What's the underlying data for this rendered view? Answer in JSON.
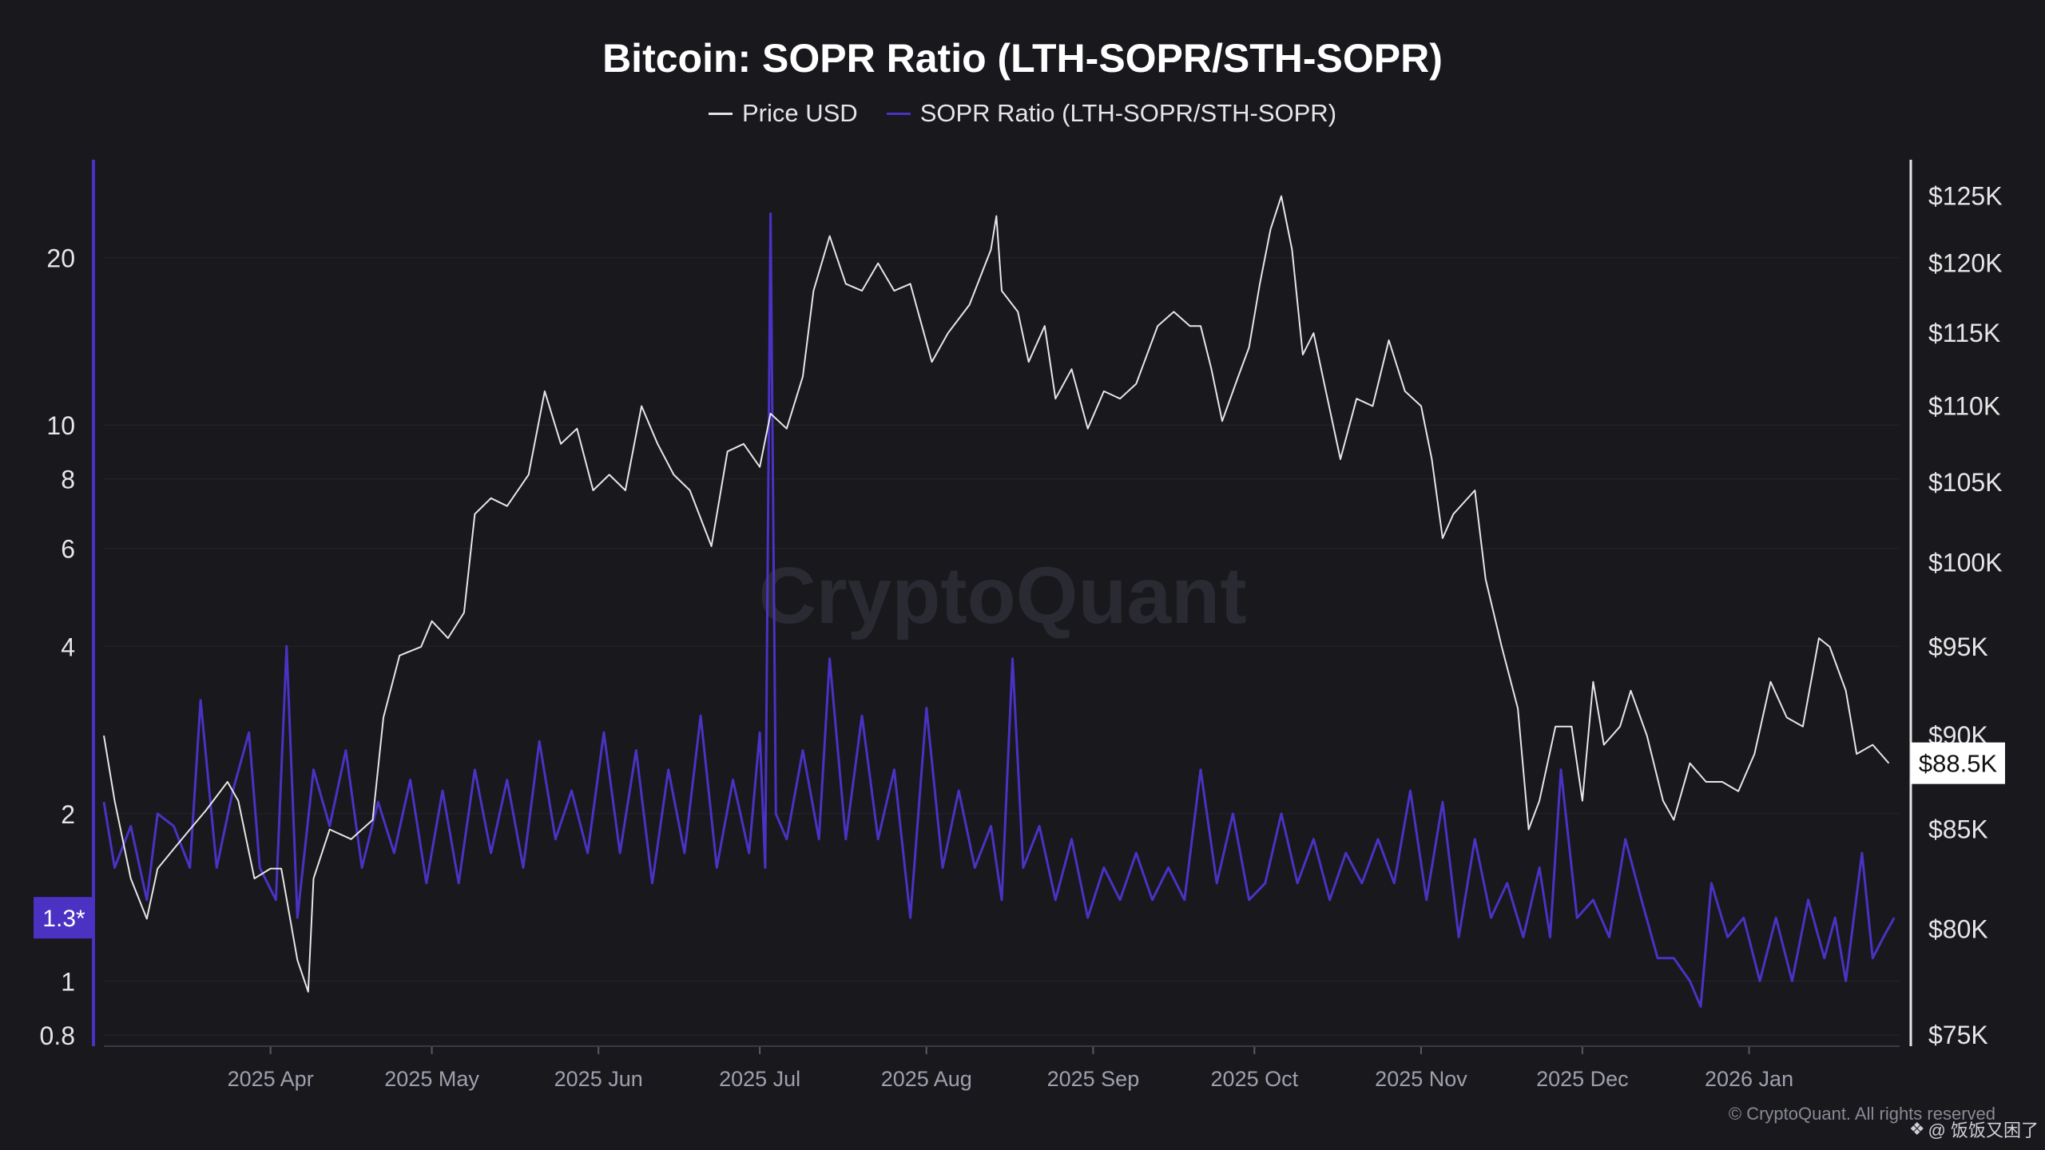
{
  "chart_data": {
    "type": "line",
    "title": "Bitcoin: SOPR Ratio (LTH-SOPR/STH-SOPR)",
    "legend_position": "top-center",
    "grid": true,
    "series": [
      {
        "name": "Price USD",
        "axis": "right",
        "color": "#e6e6e6"
      },
      {
        "name": "SOPR Ratio (LTH-SOPR/STH-SOPR)",
        "axis": "left",
        "color": "#4b32c3"
      }
    ],
    "x_ticks": [
      "2025 Apr",
      "2025 May",
      "2025 Jun",
      "2025 Jul",
      "2025 Aug",
      "2025 Sep",
      "2025 Oct",
      "2025 Nov",
      "2025 Dec",
      "2026 Jan"
    ],
    "x_range": [
      "2025-03-01",
      "2026-01-29"
    ],
    "left_axis": {
      "scale": "log",
      "range": [
        0.8,
        30
      ],
      "ticks": [
        "0.8",
        "1",
        "2",
        "4",
        "6",
        "8",
        "10",
        "20"
      ],
      "current_label": "1.3*",
      "current_value": 1.3
    },
    "right_axis": {
      "scale": "log",
      "range": [
        75000,
        127000
      ],
      "ticks": [
        "$75K",
        "$80K",
        "$85K",
        "$90K",
        "$95K",
        "$100K",
        "$105K",
        "$110K",
        "$115K",
        "$120K",
        "$125K"
      ],
      "current_label": "$88.5K",
      "current_value": 88500
    },
    "price_points": [
      [
        "2025-03-01",
        90000
      ],
      [
        "2025-03-03",
        86500
      ],
      [
        "2025-03-06",
        82500
      ],
      [
        "2025-03-09",
        80500
      ],
      [
        "2025-03-11",
        83000
      ],
      [
        "2025-03-14",
        84000
      ],
      [
        "2025-03-17",
        85000
      ],
      [
        "2025-03-20",
        86000
      ],
      [
        "2025-03-24",
        87500
      ],
      [
        "2025-03-26",
        86500
      ],
      [
        "2025-03-29",
        82500
      ],
      [
        "2025-04-01",
        83000
      ],
      [
        "2025-04-03",
        83000
      ],
      [
        "2025-04-06",
        78500
      ],
      [
        "2025-04-08",
        77000
      ],
      [
        "2025-04-09",
        82500
      ],
      [
        "2025-04-12",
        85000
      ],
      [
        "2025-04-16",
        84500
      ],
      [
        "2025-04-20",
        85500
      ],
      [
        "2025-04-22",
        91000
      ],
      [
        "2025-04-25",
        94500
      ],
      [
        "2025-04-29",
        95000
      ],
      [
        "2025-05-01",
        96500
      ],
      [
        "2025-05-04",
        95500
      ],
      [
        "2025-05-07",
        97000
      ],
      [
        "2025-05-09",
        103000
      ],
      [
        "2025-05-12",
        104000
      ],
      [
        "2025-05-15",
        103500
      ],
      [
        "2025-05-19",
        105500
      ],
      [
        "2025-05-22",
        111000
      ],
      [
        "2025-05-25",
        107500
      ],
      [
        "2025-05-28",
        108500
      ],
      [
        "2025-05-31",
        104500
      ],
      [
        "2025-06-03",
        105500
      ],
      [
        "2025-06-06",
        104500
      ],
      [
        "2025-06-09",
        110000
      ],
      [
        "2025-06-12",
        107500
      ],
      [
        "2025-06-15",
        105500
      ],
      [
        "2025-06-18",
        104500
      ],
      [
        "2025-06-22",
        101000
      ],
      [
        "2025-06-25",
        107000
      ],
      [
        "2025-06-28",
        107500
      ],
      [
        "2025-07-01",
        106000
      ],
      [
        "2025-07-03",
        109500
      ],
      [
        "2025-07-06",
        108500
      ],
      [
        "2025-07-09",
        112000
      ],
      [
        "2025-07-11",
        118000
      ],
      [
        "2025-07-14",
        122000
      ],
      [
        "2025-07-17",
        118500
      ],
      [
        "2025-07-20",
        118000
      ],
      [
        "2025-07-23",
        120000
      ],
      [
        "2025-07-26",
        118000
      ],
      [
        "2025-07-29",
        118500
      ],
      [
        "2025-08-02",
        113000
      ],
      [
        "2025-08-05",
        115000
      ],
      [
        "2025-08-09",
        117000
      ],
      [
        "2025-08-13",
        121000
      ],
      [
        "2025-08-14",
        123500
      ],
      [
        "2025-08-15",
        118000
      ],
      [
        "2025-08-18",
        116500
      ],
      [
        "2025-08-20",
        113000
      ],
      [
        "2025-08-23",
        115500
      ],
      [
        "2025-08-25",
        110500
      ],
      [
        "2025-08-28",
        112500
      ],
      [
        "2025-08-31",
        108500
      ],
      [
        "2025-09-03",
        111000
      ],
      [
        "2025-09-06",
        110500
      ],
      [
        "2025-09-09",
        111500
      ],
      [
        "2025-09-13",
        115500
      ],
      [
        "2025-09-16",
        116500
      ],
      [
        "2025-09-19",
        115500
      ],
      [
        "2025-09-21",
        115500
      ],
      [
        "2025-09-23",
        112500
      ],
      [
        "2025-09-25",
        109000
      ],
      [
        "2025-09-28",
        112000
      ],
      [
        "2025-09-30",
        114000
      ],
      [
        "2025-10-02",
        118500
      ],
      [
        "2025-10-04",
        122500
      ],
      [
        "2025-10-06",
        125000
      ],
      [
        "2025-10-08",
        121000
      ],
      [
        "2025-10-10",
        113500
      ],
      [
        "2025-10-12",
        115000
      ],
      [
        "2025-10-14",
        111500
      ],
      [
        "2025-10-17",
        106500
      ],
      [
        "2025-10-20",
        110500
      ],
      [
        "2025-10-23",
        110000
      ],
      [
        "2025-10-26",
        114500
      ],
      [
        "2025-10-29",
        111000
      ],
      [
        "2025-11-01",
        110000
      ],
      [
        "2025-11-03",
        106500
      ],
      [
        "2025-11-05",
        101500
      ],
      [
        "2025-11-07",
        103000
      ],
      [
        "2025-11-11",
        104500
      ],
      [
        "2025-11-13",
        99000
      ],
      [
        "2025-11-16",
        95000
      ],
      [
        "2025-11-19",
        91500
      ],
      [
        "2025-11-21",
        85000
      ],
      [
        "2025-11-23",
        86500
      ],
      [
        "2025-11-26",
        90500
      ],
      [
        "2025-11-29",
        90500
      ],
      [
        "2025-12-01",
        86500
      ],
      [
        "2025-12-03",
        93000
      ],
      [
        "2025-12-05",
        89500
      ],
      [
        "2025-12-08",
        90500
      ],
      [
        "2025-12-10",
        92500
      ],
      [
        "2025-12-13",
        90000
      ],
      [
        "2025-12-16",
        86500
      ],
      [
        "2025-12-18",
        85500
      ],
      [
        "2025-12-21",
        88500
      ],
      [
        "2025-12-24",
        87500
      ],
      [
        "2025-12-27",
        87500
      ],
      [
        "2025-12-30",
        87000
      ],
      [
        "2026-01-02",
        89000
      ],
      [
        "2026-01-05",
        93000
      ],
      [
        "2026-01-08",
        91000
      ],
      [
        "2026-01-11",
        90500
      ],
      [
        "2026-01-14",
        95500
      ],
      [
        "2026-01-16",
        95000
      ],
      [
        "2026-01-19",
        92500
      ],
      [
        "2026-01-21",
        89000
      ],
      [
        "2026-01-24",
        89500
      ],
      [
        "2026-01-27",
        88500
      ]
    ],
    "ratio_points": [
      [
        "2025-03-01",
        2.1
      ],
      [
        "2025-03-03",
        1.6
      ],
      [
        "2025-03-06",
        1.9
      ],
      [
        "2025-03-09",
        1.4
      ],
      [
        "2025-03-11",
        2.0
      ],
      [
        "2025-03-14",
        1.9
      ],
      [
        "2025-03-17",
        1.6
      ],
      [
        "2025-03-19",
        3.2
      ],
      [
        "2025-03-22",
        1.6
      ],
      [
        "2025-03-25",
        2.2
      ],
      [
        "2025-03-28",
        2.8
      ],
      [
        "2025-03-30",
        1.6
      ],
      [
        "2025-04-02",
        1.4
      ],
      [
        "2025-04-04",
        4.0
      ],
      [
        "2025-04-06",
        1.3
      ],
      [
        "2025-04-09",
        2.4
      ],
      [
        "2025-04-12",
        1.9
      ],
      [
        "2025-04-15",
        2.6
      ],
      [
        "2025-04-18",
        1.6
      ],
      [
        "2025-04-21",
        2.1
      ],
      [
        "2025-04-24",
        1.7
      ],
      [
        "2025-04-27",
        2.3
      ],
      [
        "2025-04-30",
        1.5
      ],
      [
        "2025-05-03",
        2.2
      ],
      [
        "2025-05-06",
        1.5
      ],
      [
        "2025-05-09",
        2.4
      ],
      [
        "2025-05-12",
        1.7
      ],
      [
        "2025-05-15",
        2.3
      ],
      [
        "2025-05-18",
        1.6
      ],
      [
        "2025-05-21",
        2.7
      ],
      [
        "2025-05-24",
        1.8
      ],
      [
        "2025-05-27",
        2.2
      ],
      [
        "2025-05-30",
        1.7
      ],
      [
        "2025-06-02",
        2.8
      ],
      [
        "2025-06-05",
        1.7
      ],
      [
        "2025-06-08",
        2.6
      ],
      [
        "2025-06-11",
        1.5
      ],
      [
        "2025-06-14",
        2.4
      ],
      [
        "2025-06-17",
        1.7
      ],
      [
        "2025-06-20",
        3.0
      ],
      [
        "2025-06-23",
        1.6
      ],
      [
        "2025-06-26",
        2.3
      ],
      [
        "2025-06-29",
        1.7
      ],
      [
        "2025-07-01",
        2.8
      ],
      [
        "2025-07-02",
        1.6
      ],
      [
        "2025-07-03",
        24.0
      ],
      [
        "2025-07-04",
        2.0
      ],
      [
        "2025-07-06",
        1.8
      ],
      [
        "2025-07-09",
        2.6
      ],
      [
        "2025-07-12",
        1.8
      ],
      [
        "2025-07-14",
        3.8
      ],
      [
        "2025-07-17",
        1.8
      ],
      [
        "2025-07-20",
        3.0
      ],
      [
        "2025-07-23",
        1.8
      ],
      [
        "2025-07-26",
        2.4
      ],
      [
        "2025-07-29",
        1.3
      ],
      [
        "2025-08-01",
        3.1
      ],
      [
        "2025-08-04",
        1.6
      ],
      [
        "2025-08-07",
        2.2
      ],
      [
        "2025-08-10",
        1.6
      ],
      [
        "2025-08-13",
        1.9
      ],
      [
        "2025-08-15",
        1.4
      ],
      [
        "2025-08-17",
        3.8
      ],
      [
        "2025-08-19",
        1.6
      ],
      [
        "2025-08-22",
        1.9
      ],
      [
        "2025-08-25",
        1.4
      ],
      [
        "2025-08-28",
        1.8
      ],
      [
        "2025-08-31",
        1.3
      ],
      [
        "2025-09-03",
        1.6
      ],
      [
        "2025-09-06",
        1.4
      ],
      [
        "2025-09-09",
        1.7
      ],
      [
        "2025-09-12",
        1.4
      ],
      [
        "2025-09-15",
        1.6
      ],
      [
        "2025-09-18",
        1.4
      ],
      [
        "2025-09-21",
        2.4
      ],
      [
        "2025-09-24",
        1.5
      ],
      [
        "2025-09-27",
        2.0
      ],
      [
        "2025-09-30",
        1.4
      ],
      [
        "2025-10-03",
        1.5
      ],
      [
        "2025-10-06",
        2.0
      ],
      [
        "2025-10-09",
        1.5
      ],
      [
        "2025-10-12",
        1.8
      ],
      [
        "2025-10-15",
        1.4
      ],
      [
        "2025-10-18",
        1.7
      ],
      [
        "2025-10-21",
        1.5
      ],
      [
        "2025-10-24",
        1.8
      ],
      [
        "2025-10-27",
        1.5
      ],
      [
        "2025-10-30",
        2.2
      ],
      [
        "2025-11-02",
        1.4
      ],
      [
        "2025-11-05",
        2.1
      ],
      [
        "2025-11-08",
        1.2
      ],
      [
        "2025-11-11",
        1.8
      ],
      [
        "2025-11-14",
        1.3
      ],
      [
        "2025-11-17",
        1.5
      ],
      [
        "2025-11-20",
        1.2
      ],
      [
        "2025-11-23",
        1.6
      ],
      [
        "2025-11-25",
        1.2
      ],
      [
        "2025-11-27",
        2.4
      ],
      [
        "2025-11-30",
        1.3
      ],
      [
        "2025-12-03",
        1.4
      ],
      [
        "2025-12-06",
        1.2
      ],
      [
        "2025-12-09",
        1.8
      ],
      [
        "2025-12-12",
        1.4
      ],
      [
        "2025-12-15",
        1.1
      ],
      [
        "2025-12-18",
        1.1
      ],
      [
        "2025-12-21",
        1.0
      ],
      [
        "2025-12-23",
        0.9
      ],
      [
        "2025-12-25",
        1.5
      ],
      [
        "2025-12-28",
        1.2
      ],
      [
        "2025-12-31",
        1.3
      ],
      [
        "2026-01-03",
        1.0
      ],
      [
        "2026-01-06",
        1.3
      ],
      [
        "2026-01-09",
        1.0
      ],
      [
        "2026-01-12",
        1.4
      ],
      [
        "2026-01-15",
        1.1
      ],
      [
        "2026-01-17",
        1.3
      ],
      [
        "2026-01-19",
        1.0
      ],
      [
        "2026-01-22",
        1.7
      ],
      [
        "2026-01-24",
        1.1
      ],
      [
        "2026-01-26",
        1.2
      ],
      [
        "2026-01-28",
        1.3
      ]
    ],
    "watermark": "CryptoQuant"
  },
  "footer": {
    "copyright": "© CryptoQuant. All rights reserved",
    "handle": "@ 饭饭又困了"
  }
}
